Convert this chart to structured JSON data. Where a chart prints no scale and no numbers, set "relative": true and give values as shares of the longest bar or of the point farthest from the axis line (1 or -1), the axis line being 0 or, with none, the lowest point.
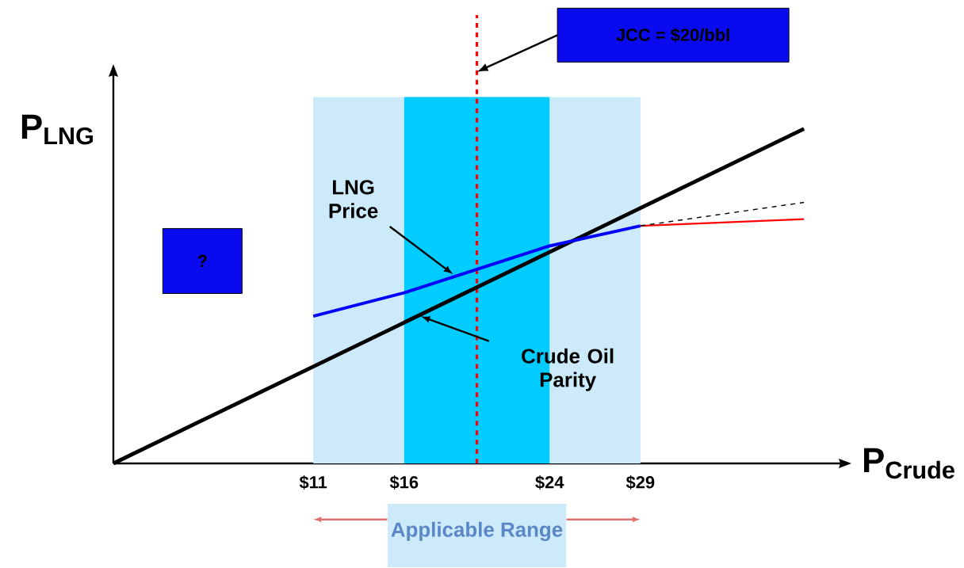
{
  "chart_data": {
    "type": "line",
    "xlabel": "P$_{Crude}$",
    "ylabel": "P$_{LNG}$",
    "relative": true,
    "xlim": [
      0,
      40
    ],
    "xticks": [
      {
        "value": 11,
        "label": "$11"
      },
      {
        "value": 16,
        "label": "$16"
      },
      {
        "value": 24,
        "label": "$24"
      },
      {
        "value": 29,
        "label": "$29"
      }
    ],
    "tick_labels": "x",
    "grid": false,
    "marker": "none",
    "series": [
      {
        "color": "#000000",
        "x": [
          0,
          38
        ],
        "values": [
          0,
          1
        ]
      },
      {
        "color": "#0000ff",
        "x": [
          11,
          16,
          24,
          29
        ],
        "values": [
          0.44,
          0.51,
          0.65,
          0.71
        ]
      },
      {
        "color": "#ff0000",
        "x": [
          29,
          38
        ],
        "values": [
          0.71,
          0.73
        ]
      },
      {
        "color": "#000000",
        "x": [
          29,
          38
        ],
        "values": [
          0.71,
          0.78
        ],
        "line_style": "dashed"
      }
    ],
    "ref_lines": [
      {
        "axis": "x",
        "value": 20,
        "color": "#ff0000",
        "line_style": "dashed"
      }
    ],
    "bands": [
      {
        "axis": "x",
        "from": 11,
        "to": 29,
        "label": "Applicable Range",
        "color": "#cdeafa"
      },
      {
        "axis": "x",
        "from": 16,
        "to": 24,
        "color": "#00ccff"
      }
    ],
    "annotations": [
      "JCC = $20/bbl",
      "LNG Price",
      "Crude Oil Parity",
      "?"
    ]
  }
}
